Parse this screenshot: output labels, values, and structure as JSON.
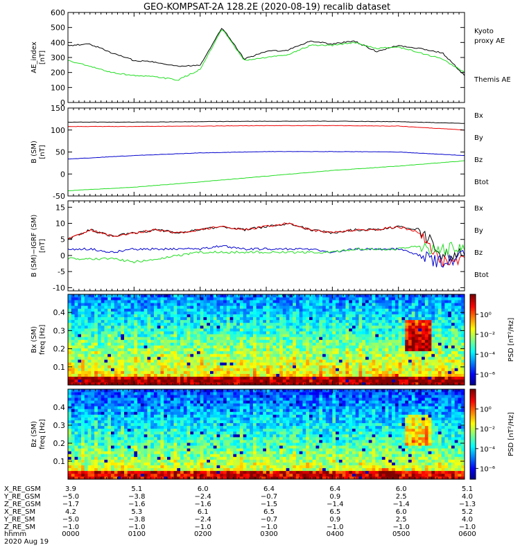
{
  "title": "GEO-KOMPSAT-2A 128.2E (2020-08-19) recalib dataset",
  "colors": {
    "black": "#000000",
    "green": "#22dd22",
    "blue": "#0000cc",
    "red": "#ee0000"
  },
  "chart_data": [
    {
      "type": "line",
      "ylabel": [
        "AE_index",
        "[nT]"
      ],
      "ylim": [
        0,
        600
      ],
      "yticks": [
        0,
        100,
        200,
        300,
        400,
        500,
        600
      ],
      "x": [
        0,
        20,
        40,
        60,
        80,
        100,
        120,
        140,
        160,
        180,
        200,
        220,
        240,
        260,
        280,
        300,
        320,
        340,
        360
      ],
      "legend": [
        {
          "name": "Kyoto",
          "color": "green"
        },
        {
          "name": "proxy AE",
          "color": "green"
        },
        {
          "name": "Themis AE",
          "color": "black"
        }
      ],
      "series": [
        {
          "name": "Themis AE",
          "color": "black",
          "values": [
            380,
            390,
            330,
            280,
            270,
            240,
            250,
            500,
            290,
            340,
            350,
            410,
            390,
            410,
            340,
            380,
            360,
            330,
            180
          ]
        },
        {
          "name": "Kyoto proxy AE",
          "color": "green",
          "values": [
            280,
            240,
            200,
            180,
            170,
            150,
            220,
            490,
            280,
            300,
            320,
            380,
            380,
            400,
            360,
            370,
            330,
            290,
            200
          ]
        }
      ]
    },
    {
      "type": "line",
      "ylabel": [
        "B (SM)",
        "[nT]"
      ],
      "ylim": [
        -50,
        150
      ],
      "yticks": [
        -50,
        0,
        50,
        100,
        150
      ],
      "x": [
        0,
        60,
        120,
        180,
        240,
        300,
        360
      ],
      "legend": [
        {
          "name": "Bx",
          "color": "blue"
        },
        {
          "name": "By",
          "color": "green"
        },
        {
          "name": "Bz",
          "color": "red"
        },
        {
          "name": "Btot",
          "color": "black"
        }
      ],
      "series": [
        {
          "name": "Btot",
          "color": "black",
          "values": [
            118,
            118,
            119,
            120,
            120,
            119,
            115
          ]
        },
        {
          "name": "Bz",
          "color": "red",
          "values": [
            108,
            108,
            109,
            110,
            110,
            109,
            100
          ]
        },
        {
          "name": "Bx",
          "color": "blue",
          "values": [
            34,
            42,
            48,
            51,
            51,
            50,
            42
          ]
        },
        {
          "name": "By",
          "color": "green",
          "values": [
            -38,
            -30,
            -18,
            -5,
            8,
            18,
            30
          ]
        }
      ]
    },
    {
      "type": "line",
      "ylabel": [
        "B (SM)−IGRF (SM)",
        "[nT]"
      ],
      "ylim": [
        -11,
        17
      ],
      "yticks": [
        -10,
        -5,
        0,
        5,
        10,
        15
      ],
      "x": [
        0,
        20,
        40,
        60,
        80,
        100,
        120,
        140,
        160,
        180,
        200,
        220,
        240,
        260,
        280,
        300,
        320,
        340,
        360
      ],
      "legend": [
        {
          "name": "Bx",
          "color": "blue"
        },
        {
          "name": "By",
          "color": "green"
        },
        {
          "name": "Bz",
          "color": "red"
        },
        {
          "name": "Btot",
          "color": "black"
        }
      ],
      "series": [
        {
          "name": "Btot",
          "color": "black",
          "values": [
            5,
            8,
            6,
            7,
            8,
            7,
            8,
            9,
            8,
            9,
            10,
            8,
            7,
            8,
            8,
            9,
            8,
            0,
            1
          ]
        },
        {
          "name": "Bz",
          "color": "red",
          "values": [
            5,
            8,
            6,
            7,
            8,
            7,
            8,
            9,
            8,
            9,
            10,
            8,
            7,
            8,
            8,
            9,
            7,
            -2,
            -1
          ]
        },
        {
          "name": "Bx",
          "color": "blue",
          "values": [
            2,
            2,
            1,
            2,
            2,
            2,
            2,
            3,
            2,
            2,
            2,
            2,
            1,
            2,
            2,
            2,
            0,
            -2,
            0
          ]
        },
        {
          "name": "By",
          "color": "green",
          "values": [
            -1,
            -1,
            -1,
            -2,
            -1,
            0,
            1,
            1,
            1,
            1,
            1,
            1,
            1,
            2,
            2,
            2,
            3,
            2,
            2
          ]
        }
      ]
    },
    {
      "type": "heatmap",
      "ylabel": [
        "Bx (SM)",
        "freq [Hz]"
      ],
      "ylim": [
        0.0,
        0.5
      ],
      "yticks": [
        0.1,
        0.2,
        0.3,
        0.4
      ],
      "colorbar": {
        "label": "PSD [nT²/Hz]",
        "ticks": [
          "10⁰",
          "10⁻²",
          "10⁻⁴",
          "10⁻⁶"
        ]
      }
    },
    {
      "type": "heatmap",
      "ylabel": [
        "Bz (SM)",
        "freq [Hz]"
      ],
      "ylim": [
        0.0,
        0.5
      ],
      "yticks": [
        0.1,
        0.2,
        0.3,
        0.4
      ],
      "colorbar": {
        "label": "PSD [nT²/Hz]",
        "ticks": [
          "10⁰",
          "10⁻²",
          "10⁻⁴",
          "10⁻⁶"
        ]
      }
    }
  ],
  "ephemeris": {
    "row_labels": [
      "X_RE_GSM",
      "Y_RE_GSM",
      "Z_RE_GSM",
      "X_RE_SM",
      "Y_RE_SM",
      "Z_RE_SM",
      "hhmm",
      "2020 Aug 19"
    ],
    "columns": [
      {
        "values": [
          "3.9",
          "−5.0",
          "−1.7",
          "4.2",
          "−5.0",
          "−1.0",
          "0000"
        ]
      },
      {
        "values": [
          "5.1",
          "−3.8",
          "−1.6",
          "5.3",
          "−3.8",
          "−1.0",
          "0100"
        ]
      },
      {
        "values": [
          "6.0",
          "−2.4",
          "−1.6",
          "6.1",
          "−2.4",
          "−1.0",
          "0200"
        ]
      },
      {
        "values": [
          "6.4",
          "−0.7",
          "−1.5",
          "6.5",
          "−0.7",
          "−1.0",
          "0300"
        ]
      },
      {
        "values": [
          "6.4",
          "0.9",
          "−1.4",
          "6.5",
          "0.9",
          "−1.0",
          "0400"
        ]
      },
      {
        "values": [
          "6.0",
          "2.5",
          "−1.4",
          "6.0",
          "2.5",
          "−1.0",
          "0500"
        ]
      },
      {
        "values": [
          "5.1",
          "4.0",
          "−1.3",
          "5.2",
          "4.0",
          "−1.0",
          "0600"
        ]
      }
    ]
  }
}
